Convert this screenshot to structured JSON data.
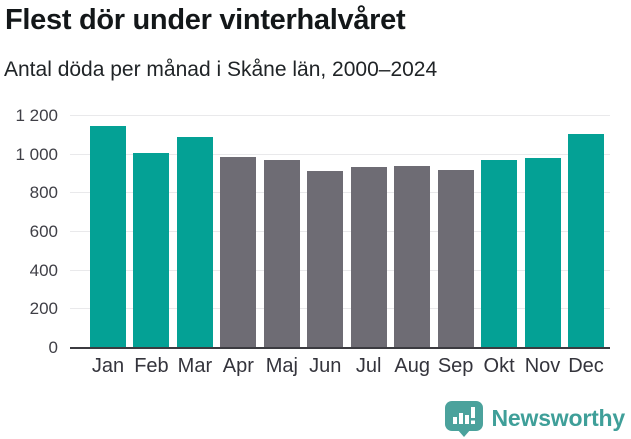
{
  "header": {
    "title": "Flest dör under vinterhalvåret",
    "subtitle": "Antal döda per månad i Skåne län, 2000–2024"
  },
  "chart_data": {
    "type": "bar",
    "title": "Flest dör under vinterhalvåret",
    "subtitle": "Antal döda per månad i Skåne län, 2000–2024",
    "categories": [
      "Jan",
      "Feb",
      "Mar",
      "Apr",
      "Maj",
      "Jun",
      "Jul",
      "Aug",
      "Sep",
      "Okt",
      "Nov",
      "Dec"
    ],
    "values": [
      1150,
      1010,
      1090,
      990,
      970,
      915,
      935,
      940,
      920,
      975,
      985,
      1105
    ],
    "bar_colors": [
      "winter",
      "winter",
      "winter",
      "summer",
      "summer",
      "summer",
      "summer",
      "summer",
      "summer",
      "winter",
      "winter",
      "winter"
    ],
    "xlabel": "",
    "ylabel": "",
    "ylim": [
      0,
      1200
    ],
    "yticks": [
      0,
      200,
      400,
      600,
      800,
      1000,
      1200
    ],
    "ytick_labels": [
      "0",
      "200",
      "400",
      "600",
      "800",
      "1 000",
      "1 200"
    ],
    "grid": "horizontal",
    "legend": "none"
  },
  "colors": {
    "winter_bar_color": "#04a195",
    "summer_bar_color": "#6e6c74",
    "gridline_color": "#e9e9eb",
    "axis_line_color": "#3b3b40",
    "tick_label_color": "#3f3f46",
    "title_color": "#131719",
    "subtitle_color": "#202427",
    "brand_color": "#3f9f99",
    "brand_icon_color": "#4ba29c",
    "background_color": "#ffffff"
  },
  "footer": {
    "brand_name": "Newsworthy"
  }
}
